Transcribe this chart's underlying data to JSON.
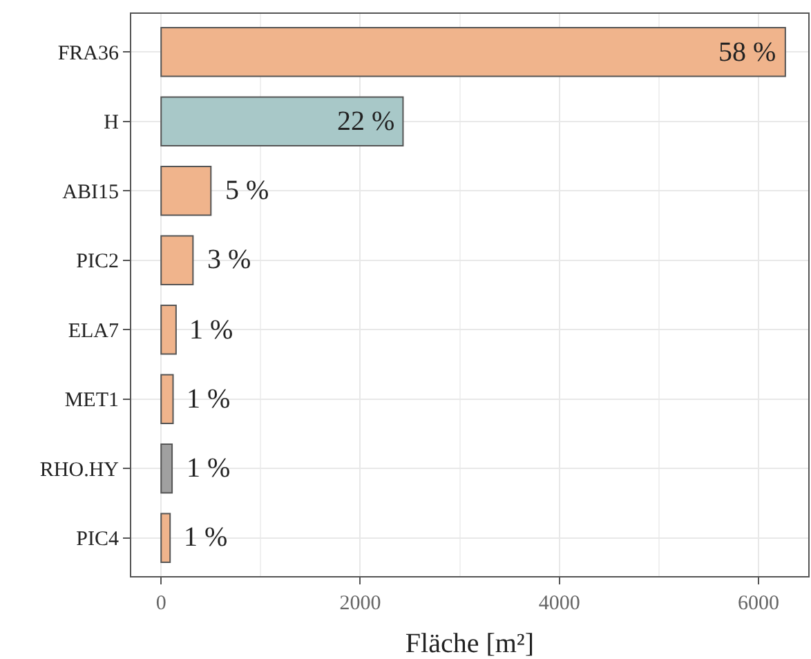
{
  "chart_data": {
    "type": "bar",
    "orientation": "horizontal",
    "xlabel": "Fläche [m²]",
    "categories": [
      "FRA36",
      "H",
      "ABI15",
      "PIC2",
      "ELA7",
      "MET1",
      "RHO.HY",
      "PIC4"
    ],
    "values": [
      6270,
      2430,
      500,
      320,
      150,
      120,
      110,
      90
    ],
    "colors": [
      "#f0b48c",
      "#a8c8c8",
      "#f0b48c",
      "#f0b48c",
      "#f0b48c",
      "#f0b48c",
      "#a0a0a0",
      "#f0b48c"
    ],
    "annotations": [
      {
        "text": "58 %",
        "x": 6270,
        "y": "FRA36"
      },
      {
        "text": "22 %",
        "x": 2430,
        "y": "H"
      },
      {
        "text": "5 %",
        "x": 500,
        "y": "ABI15"
      },
      {
        "text": "3 %",
        "x": 320,
        "y": "PIC2"
      },
      {
        "text": "1 %",
        "x": 150,
        "y": "ELA7"
      },
      {
        "text": "1 %",
        "x": 120,
        "y": "MET1"
      },
      {
        "text": "1 %",
        "x": 110,
        "y": "RHO.HY"
      },
      {
        "text": "1 %",
        "x": 90,
        "y": "PIC4"
      }
    ],
    "xlim": [
      -300,
      6500
    ],
    "xticks": [
      0,
      2000,
      4000,
      6000
    ],
    "grid": true,
    "legend": false
  }
}
